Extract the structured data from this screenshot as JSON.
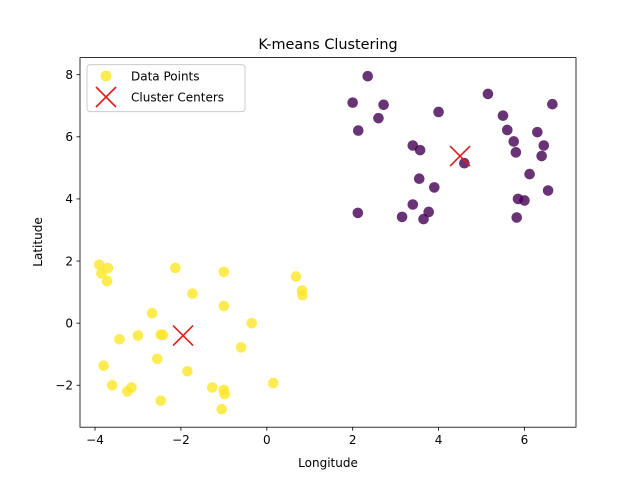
{
  "chart_data": {
    "type": "scatter",
    "title": "K-means Clustering",
    "xlabel": "Longitude",
    "ylabel": "Latitude",
    "xlim": [
      -4.35,
      7.2
    ],
    "ylim": [
      -3.35,
      8.55
    ],
    "xticks": [
      -4,
      -2,
      0,
      2,
      4,
      6
    ],
    "yticks": [
      -2,
      0,
      2,
      4,
      6,
      8
    ],
    "grid": false,
    "legend_position": "top-left",
    "series": [
      {
        "name": "Data Points",
        "legend_color": "#fde725",
        "clusters": [
          {
            "color": "#fde725",
            "points": [
              [
                -3.9,
                1.88
              ],
              [
                -3.85,
                1.6
              ],
              [
                -3.7,
                1.78
              ],
              [
                -3.72,
                1.35
              ],
              [
                -2.13,
                1.78
              ],
              [
                -1.73,
                0.95
              ],
              [
                -1.0,
                1.65
              ],
              [
                -1.0,
                0.55
              ],
              [
                0.68,
                1.5
              ],
              [
                0.82,
                1.05
              ],
              [
                0.83,
                0.9
              ],
              [
                -0.35,
                0.0
              ],
              [
                -2.67,
                0.32
              ],
              [
                -3.0,
                -0.4
              ],
              [
                -3.43,
                -0.52
              ],
              [
                -2.47,
                -0.37
              ],
              [
                -2.42,
                -0.38
              ],
              [
                -2.55,
                -1.15
              ],
              [
                -3.8,
                -1.37
              ],
              [
                -3.6,
                -2.0
              ],
              [
                -3.15,
                -2.07
              ],
              [
                -3.25,
                -2.2
              ],
              [
                -2.47,
                -2.5
              ],
              [
                -1.85,
                -1.55
              ],
              [
                -0.6,
                -0.78
              ],
              [
                -1.27,
                -2.07
              ],
              [
                -1.0,
                -2.15
              ],
              [
                -0.98,
                -2.28
              ],
              [
                -1.05,
                -2.77
              ],
              [
                0.15,
                -1.93
              ]
            ]
          },
          {
            "color": "#440154",
            "points": [
              [
                2.0,
                7.1
              ],
              [
                2.35,
                7.95
              ],
              [
                2.72,
                7.03
              ],
              [
                2.13,
                6.2
              ],
              [
                2.6,
                6.6
              ],
              [
                4.0,
                6.8
              ],
              [
                5.15,
                7.38
              ],
              [
                5.5,
                6.68
              ],
              [
                6.65,
                7.05
              ],
              [
                5.6,
                6.22
              ],
              [
                5.75,
                5.85
              ],
              [
                5.8,
                5.5
              ],
              [
                6.3,
                6.15
              ],
              [
                6.45,
                5.72
              ],
              [
                6.4,
                5.38
              ],
              [
                3.4,
                5.72
              ],
              [
                3.57,
                5.57
              ],
              [
                4.6,
                5.15
              ],
              [
                3.55,
                4.65
              ],
              [
                3.9,
                4.37
              ],
              [
                6.12,
                4.8
              ],
              [
                6.55,
                4.27
              ],
              [
                5.85,
                4.0
              ],
              [
                6.0,
                3.95
              ],
              [
                3.4,
                3.82
              ],
              [
                3.77,
                3.58
              ],
              [
                3.15,
                3.42
              ],
              [
                3.65,
                3.35
              ],
              [
                5.82,
                3.4
              ],
              [
                2.12,
                3.55
              ]
            ]
          }
        ]
      },
      {
        "name": "Cluster Centers",
        "color": "#e31a1c",
        "marker": "x",
        "points": [
          [
            -1.95,
            -0.4
          ],
          [
            4.5,
            5.38
          ]
        ]
      }
    ]
  }
}
